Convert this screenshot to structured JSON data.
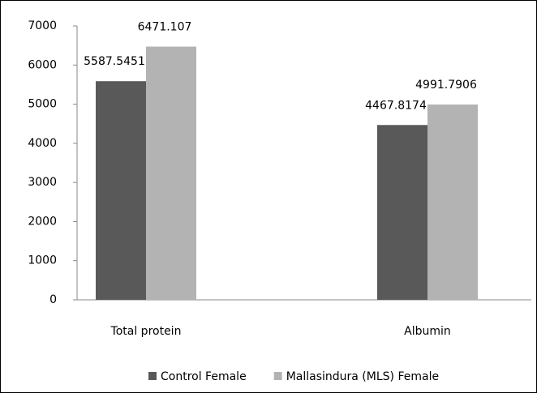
{
  "chart_data": {
    "type": "bar",
    "categories": [
      "Total protein",
      "Albumin"
    ],
    "series": [
      {
        "name": "Control Female",
        "color": "#595959",
        "values": [
          5587.5451,
          4467.8174
        ]
      },
      {
        "name": "Mallasindura (MLS) Female",
        "color": "#b3b3b3",
        "values": [
          6471.107,
          4991.7906
        ]
      }
    ],
    "ylim": [
      0,
      7000
    ],
    "yticks": [
      0,
      1000,
      2000,
      3000,
      4000,
      5000,
      6000,
      7000
    ],
    "grid": false,
    "legend": "bottom"
  }
}
